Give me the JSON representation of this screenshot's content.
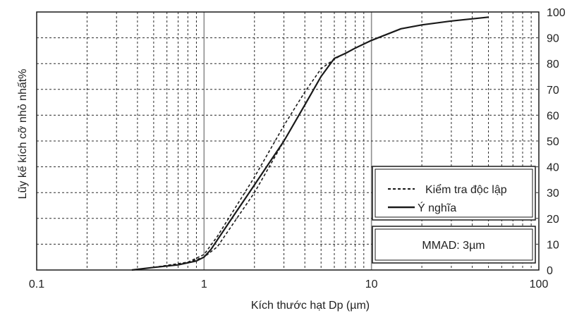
{
  "chart_data": {
    "type": "line",
    "xscale": "log",
    "xlim": [
      0.1,
      100
    ],
    "ylim": [
      0,
      100
    ],
    "xticks": [
      "0.1",
      "1",
      "10",
      "100"
    ],
    "yticks": [
      "0",
      "10",
      "20",
      "30",
      "40",
      "50",
      "60",
      "70",
      "80",
      "90",
      "100"
    ],
    "xlabel": "Kích thước hạt Dp (µm)",
    "ylabel": "Lũy kế kích cỡ nhỏ nhất%",
    "grid": true,
    "legend_position": "lower-right",
    "series": [
      {
        "name": "Kiểm tra độc lập",
        "style": "dashed",
        "x": [
          0.5,
          0.8,
          1.0,
          1.2,
          2,
          3,
          4,
          5,
          6,
          7
        ],
        "y": [
          1,
          3,
          5,
          9,
          30,
          50,
          64,
          75,
          82,
          84
        ]
      },
      {
        "name": "Kiểm tra độc lập",
        "style": "dashed",
        "x": [
          0.5,
          0.8,
          1.0,
          1.2,
          2,
          3,
          4,
          5,
          5.8,
          6.5,
          7
        ],
        "y": [
          1,
          3,
          6,
          13,
          36,
          56,
          69,
          78,
          81,
          83,
          84
        ]
      },
      {
        "name": "Ý nghĩa",
        "style": "solid",
        "x": [
          0.37,
          0.5,
          0.7,
          0.9,
          1.0,
          1.1,
          1.5,
          2,
          3,
          4,
          5,
          6,
          7,
          8,
          10,
          15,
          20,
          30,
          50
        ],
        "y": [
          0,
          1,
          2,
          3.5,
          5,
          8,
          21,
          33,
          50,
          64,
          75,
          82,
          84,
          86,
          89,
          93.5,
          95,
          96.5,
          98
        ]
      }
    ],
    "legend": [
      {
        "label": "Kiểm tra độc lập",
        "style": "dashed"
      },
      {
        "label": "Ý nghĩa",
        "style": "solid"
      }
    ],
    "annotation": "MMAD: 3µm"
  },
  "colors": {
    "line": "#1a1a1a",
    "major_grid": "#8f8f8f",
    "minor_grid": "#2b2b2b",
    "background": "#ffffff"
  }
}
